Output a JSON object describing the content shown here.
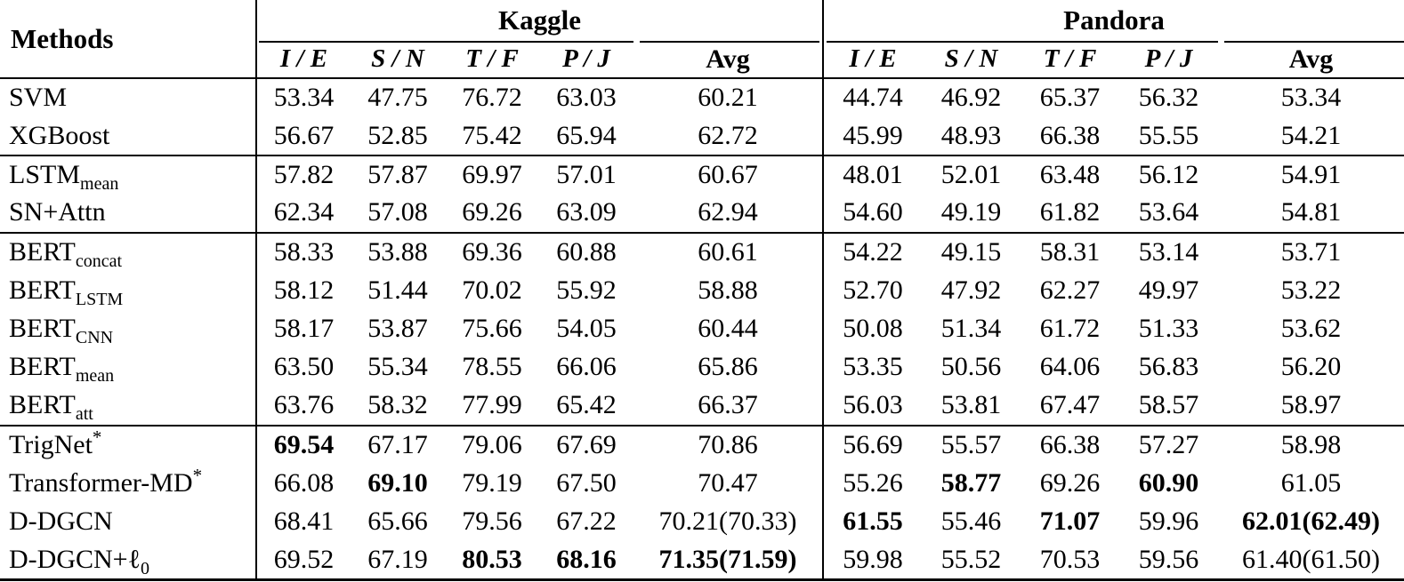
{
  "table": {
    "methods_header": "Methods",
    "sections": [
      {
        "name": "Kaggle",
        "columns": [
          "I / E",
          "S / N",
          "T / F",
          "P / J",
          "Avg"
        ]
      },
      {
        "name": "Pandora",
        "columns": [
          "I / E",
          "S / N",
          "T / F",
          "P / J",
          "Avg"
        ]
      }
    ],
    "rows": [
      {
        "method_main": "SVM",
        "method_sub": "",
        "method_sup": "",
        "group_start": false,
        "kaggle": [
          "53.34",
          "47.75",
          "76.72",
          "63.03",
          "60.21"
        ],
        "kaggle_bold": [],
        "pandora": [
          "44.74",
          "46.92",
          "65.37",
          "56.32",
          "53.34"
        ],
        "pandora_bold": []
      },
      {
        "method_main": "XGBoost",
        "method_sub": "",
        "method_sup": "",
        "group_start": false,
        "kaggle": [
          "56.67",
          "52.85",
          "75.42",
          "65.94",
          "62.72"
        ],
        "kaggle_bold": [],
        "pandora": [
          "45.99",
          "48.93",
          "66.38",
          "55.55",
          "54.21"
        ],
        "pandora_bold": []
      },
      {
        "method_main": "LSTM",
        "method_sub": "mean",
        "method_sup": "",
        "group_start": true,
        "kaggle": [
          "57.82",
          "57.87",
          "69.97",
          "57.01",
          "60.67"
        ],
        "kaggle_bold": [],
        "pandora": [
          "48.01",
          "52.01",
          "63.48",
          "56.12",
          "54.91"
        ],
        "pandora_bold": []
      },
      {
        "method_main": "SN+Attn",
        "method_sub": "",
        "method_sup": "",
        "group_start": false,
        "kaggle": [
          "62.34",
          "57.08",
          "69.26",
          "63.09",
          "62.94"
        ],
        "kaggle_bold": [],
        "pandora": [
          "54.60",
          "49.19",
          "61.82",
          "53.64",
          "54.81"
        ],
        "pandora_bold": []
      },
      {
        "method_main": "BERT",
        "method_sub": "concat",
        "method_sup": "",
        "group_start": true,
        "kaggle": [
          "58.33",
          "53.88",
          "69.36",
          "60.88",
          "60.61"
        ],
        "kaggle_bold": [],
        "pandora": [
          "54.22",
          "49.15",
          "58.31",
          "53.14",
          "53.71"
        ],
        "pandora_bold": []
      },
      {
        "method_main": "BERT",
        "method_sub": "LSTM",
        "method_sup": "",
        "group_start": false,
        "kaggle": [
          "58.12",
          "51.44",
          "70.02",
          "55.92",
          "58.88"
        ],
        "kaggle_bold": [],
        "pandora": [
          "52.70",
          "47.92",
          "62.27",
          "49.97",
          "53.22"
        ],
        "pandora_bold": []
      },
      {
        "method_main": "BERT",
        "method_sub": "CNN",
        "method_sup": "",
        "group_start": false,
        "kaggle": [
          "58.17",
          "53.87",
          "75.66",
          "54.05",
          "60.44"
        ],
        "kaggle_bold": [],
        "pandora": [
          "50.08",
          "51.34",
          "61.72",
          "51.33",
          "53.62"
        ],
        "pandora_bold": []
      },
      {
        "method_main": "BERT",
        "method_sub": "mean",
        "method_sup": "",
        "group_start": false,
        "kaggle": [
          "63.50",
          "55.34",
          "78.55",
          "66.06",
          "65.86"
        ],
        "kaggle_bold": [],
        "pandora": [
          "53.35",
          "50.56",
          "64.06",
          "56.83",
          "56.20"
        ],
        "pandora_bold": []
      },
      {
        "method_main": "BERT",
        "method_sub": "att",
        "method_sup": "",
        "group_start": false,
        "kaggle": [
          "63.76",
          "58.32",
          "77.99",
          "65.42",
          "66.37"
        ],
        "kaggle_bold": [],
        "pandora": [
          "56.03",
          "53.81",
          "67.47",
          "58.57",
          "58.97"
        ],
        "pandora_bold": []
      },
      {
        "method_main": "TrigNet",
        "method_sub": "",
        "method_sup": "*",
        "group_start": true,
        "kaggle": [
          "69.54",
          "67.17",
          "79.06",
          "67.69",
          "70.86"
        ],
        "kaggle_bold": [
          0
        ],
        "pandora": [
          "56.69",
          "55.57",
          "66.38",
          "57.27",
          "58.98"
        ],
        "pandora_bold": []
      },
      {
        "method_main": "Transformer-MD",
        "method_sub": "",
        "method_sup": "*",
        "group_start": false,
        "kaggle": [
          "66.08",
          "69.10",
          "79.19",
          "67.50",
          "70.47"
        ],
        "kaggle_bold": [
          1
        ],
        "pandora": [
          "55.26",
          "58.77",
          "69.26",
          "60.90",
          "61.05"
        ],
        "pandora_bold": [
          1,
          3
        ]
      },
      {
        "method_main": "D-DGCN",
        "method_sub": "",
        "method_sup": "",
        "group_start": false,
        "kaggle": [
          "68.41",
          "65.66",
          "79.56",
          "67.22",
          "70.21(70.33)"
        ],
        "kaggle_bold": [],
        "pandora": [
          "61.55",
          "55.46",
          "71.07",
          "59.96",
          "62.01(62.49)"
        ],
        "pandora_bold": [
          0,
          2,
          4
        ]
      },
      {
        "method_main": "D-DGCN+ℓ",
        "method_sub": "0",
        "method_sup": "",
        "group_start": false,
        "kaggle": [
          "69.52",
          "67.19",
          "80.53",
          "68.16",
          "71.35(71.59)"
        ],
        "kaggle_bold": [
          2,
          3,
          4
        ],
        "pandora": [
          "59.98",
          "55.52",
          "70.53",
          "59.56",
          "61.40(61.50)"
        ],
        "pandora_bold": []
      }
    ]
  },
  "rule_color": "#000000",
  "background_color": "#ffffff"
}
